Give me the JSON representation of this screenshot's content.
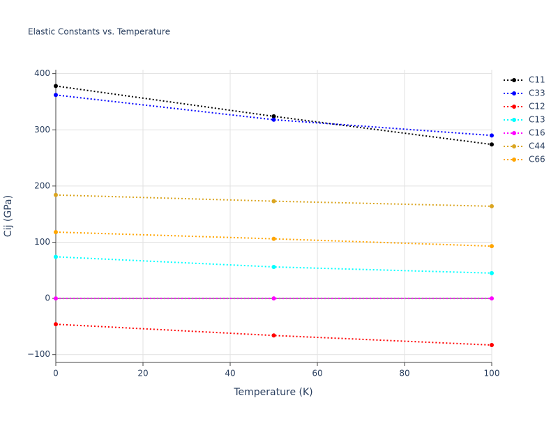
{
  "chart_data": {
    "type": "line",
    "title": "Elastic Constants vs. Temperature",
    "x_label": "Temperature (K)",
    "y_label": "Cij (GPa)",
    "x": [
      0,
      50,
      100
    ],
    "series": [
      {
        "name": "C11",
        "color": "#000000",
        "values": [
          378,
          324,
          274
        ]
      },
      {
        "name": "C33",
        "color": "#0000ff",
        "values": [
          362,
          318,
          290
        ]
      },
      {
        "name": "C12",
        "color": "#ff0000",
        "values": [
          -46,
          -66,
          -83
        ]
      },
      {
        "name": "C13",
        "color": "#00ffff",
        "values": [
          74,
          56,
          45
        ]
      },
      {
        "name": "C16",
        "color": "#ff00ff",
        "values": [
          0,
          0,
          0
        ]
      },
      {
        "name": "C44",
        "color": "#daa520",
        "values": [
          184,
          173,
          164
        ]
      },
      {
        "name": "C66",
        "color": "#ffa500",
        "values": [
          118,
          106,
          93
        ]
      }
    ],
    "xlim": [
      0,
      100
    ],
    "xticks": [
      0,
      20,
      40,
      60,
      80,
      100
    ],
    "ylim": [
      -114,
      407
    ],
    "yticks": [
      {
        "value": -100,
        "label": "−100"
      },
      0,
      100,
      200,
      300,
      400
    ],
    "grid": true,
    "legend": "top-right"
  }
}
